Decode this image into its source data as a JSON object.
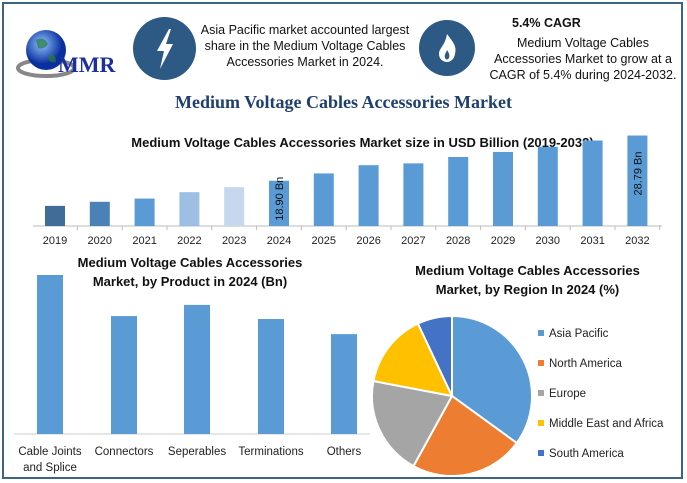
{
  "logo": {
    "text": "MMR"
  },
  "info_left": {
    "icon": "lightning-bolt-icon",
    "text": "Asia Pacific market accounted largest share in the Medium Voltage Cables Accessories Market in 2024."
  },
  "info_right": {
    "icon": "flame-icon",
    "heading": "5.4% CAGR",
    "text": "Medium Voltage Cables Accessories Market to grow at a CAGR of 5.4% during 2024-2032."
  },
  "main_title": "Medium Voltage Cables Accessories Market",
  "colors": {
    "frame": "#3b6582",
    "icon_circle": "#2c5a85",
    "bar": "#5b9bd5",
    "title": "#1f3f6e"
  },
  "chart_data": [
    {
      "type": "bar",
      "title": "Medium Voltage Cables Accessories Market size in USD Billion (2019-2032)",
      "categories": [
        "2019",
        "2020",
        "2021",
        "2022",
        "2023",
        "2024",
        "2025",
        "2026",
        "2027",
        "2028",
        "2029",
        "2030",
        "2031",
        "2032"
      ],
      "values": [
        13.4,
        14.3,
        15.0,
        16.4,
        17.5,
        18.9,
        20.5,
        22.3,
        22.7,
        24.1,
        25.2,
        26.3,
        27.7,
        28.79
      ],
      "bar_colors": [
        "#3f6d98",
        "#4a82b8",
        "#5b9bd5",
        "#9dbfe3",
        "#c5d8ee",
        "#5b9bd5",
        "#5b9bd5",
        "#5b9bd5",
        "#5b9bd5",
        "#5b9bd5",
        "#5b9bd5",
        "#5b9bd5",
        "#5b9bd5",
        "#5b9bd5"
      ],
      "data_labels": {
        "2024": "18.90 Bn",
        "2032": "28.79 Bn"
      },
      "ylim": [
        9,
        30
      ],
      "grid": false
    },
    {
      "type": "bar",
      "title": "Medium Voltage Cables Accessories Market, by Product in 2024 (Bn)",
      "categories": [
        "Cable Joints and Splice",
        "Connectors",
        "Seperables",
        "Terminations",
        "Others"
      ],
      "category_lines": [
        [
          "Cable Joints",
          "and Splice"
        ],
        [
          "Connectors"
        ],
        [
          "Seperables"
        ],
        [
          "Terminations"
        ],
        [
          "Others"
        ]
      ],
      "values": [
        4.84,
        3.59,
        3.93,
        3.5,
        3.04
      ],
      "ylim": [
        0,
        4.84
      ],
      "grid": false
    },
    {
      "type": "pie",
      "title": "Medium Voltage Cables Accessories Market, by Region In 2024 (%)",
      "labels": [
        "Asia Pacific",
        "North America",
        "Europe",
        "Middle East and Africa",
        "South America"
      ],
      "values": [
        35,
        23,
        20,
        15,
        7
      ],
      "colors": [
        "#5b9bd5",
        "#ed7d31",
        "#a5a5a5",
        "#ffc000",
        "#4472c4"
      ],
      "legend": "right"
    }
  ]
}
